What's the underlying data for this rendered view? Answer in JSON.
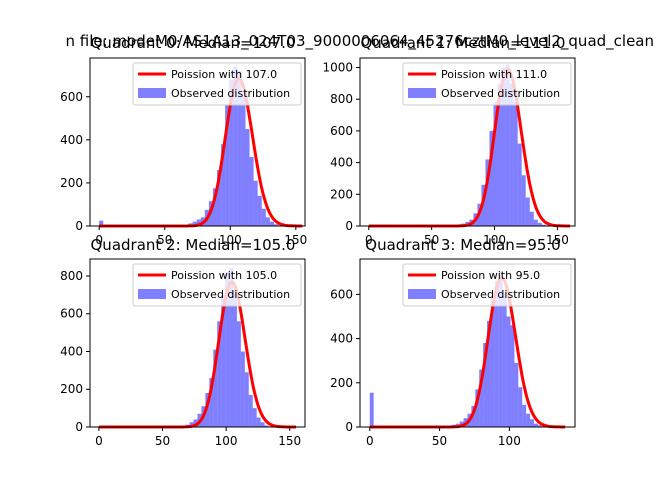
{
  "suptitle": "n file: modeM0/AS1A13_024T03_9000006064_45276cztM0_level2_quad_clean",
  "colors": {
    "poisson": "#ff0000",
    "observed": "#0000ff"
  },
  "chart_data": [
    {
      "type": "bar",
      "title": "Quadrant 0: Median=107.0",
      "xlim": [
        -7,
        157
      ],
      "ylim": [
        0,
        780
      ],
      "xticks": [
        0,
        50,
        100,
        150
      ],
      "yticks": [
        0,
        200,
        400,
        600
      ],
      "legend": {
        "placement": "top-right",
        "entries": [
          {
            "label": "Poission with 107.0",
            "kind": "line"
          },
          {
            "label": "Observed distribution",
            "kind": "patch"
          }
        ]
      },
      "bins": {
        "start": 0,
        "width": 3.1,
        "values": [
          25,
          3,
          0,
          0,
          0,
          0,
          0,
          0,
          0,
          0,
          0,
          0,
          0,
          0,
          0,
          0,
          0,
          0,
          0,
          0,
          3,
          7,
          12,
          20,
          30,
          40,
          75,
          115,
          175,
          260,
          380,
          560,
          680,
          740,
          720,
          610,
          450,
          320,
          210,
          140,
          80,
          40,
          20,
          8,
          3,
          0,
          0,
          0,
          0,
          0
        ]
      },
      "poisson_mean": 107
    },
    {
      "type": "bar",
      "title": "Quadrant 1: Median=111.0",
      "xlim": [
        -7,
        164
      ],
      "ylim": [
        0,
        1060
      ],
      "xticks": [
        0,
        50,
        100,
        150
      ],
      "yticks": [
        0,
        200,
        400,
        600,
        800,
        1000
      ],
      "legend": {
        "placement": "top-right",
        "entries": [
          {
            "label": "Poission with 111.0",
            "kind": "line"
          },
          {
            "label": "Observed distribution",
            "kind": "patch"
          }
        ]
      },
      "bins": {
        "start": 0,
        "width": 3.2,
        "values": [
          3,
          0,
          0,
          0,
          0,
          0,
          0,
          0,
          0,
          0,
          0,
          0,
          0,
          0,
          0,
          0,
          0,
          0,
          0,
          0,
          3,
          5,
          10,
          15,
          25,
          40,
          80,
          140,
          260,
          420,
          600,
          780,
          900,
          1000,
          1020,
          900,
          780,
          520,
          320,
          180,
          90,
          40,
          20,
          8,
          3,
          0,
          0,
          0,
          0,
          0
        ]
      },
      "poisson_mean": 111
    },
    {
      "type": "bar",
      "title": "Quadrant 2: Median=105.0",
      "xlim": [
        -7,
        162
      ],
      "ylim": [
        0,
        890
      ],
      "xticks": [
        0,
        50,
        100,
        150
      ],
      "yticks": [
        0,
        200,
        400,
        600,
        800
      ],
      "legend": {
        "placement": "top-right",
        "entries": [
          {
            "label": "Poission with 105.0",
            "kind": "line"
          },
          {
            "label": "Observed distribution",
            "kind": "patch"
          }
        ]
      },
      "bins": {
        "start": 0,
        "width": 3.1,
        "values": [
          3,
          0,
          0,
          0,
          0,
          0,
          0,
          0,
          0,
          0,
          0,
          0,
          0,
          0,
          0,
          0,
          0,
          0,
          0,
          0,
          3,
          7,
          12,
          25,
          40,
          70,
          110,
          180,
          260,
          410,
          560,
          700,
          820,
          840,
          720,
          560,
          400,
          290,
          170,
          100,
          50,
          25,
          8,
          3,
          0,
          0,
          0,
          0,
          0,
          0
        ]
      },
      "poisson_mean": 105
    },
    {
      "type": "bar",
      "title": "Quadrant 3: Median=95.0",
      "xlim": [
        -7,
        147
      ],
      "ylim": [
        0,
        760
      ],
      "xticks": [
        0,
        50,
        100
      ],
      "yticks": [
        0,
        200,
        400,
        600
      ],
      "legend": {
        "placement": "top-right",
        "entries": [
          {
            "label": "Poission with 95.0",
            "kind": "line"
          },
          {
            "label": "Observed distribution",
            "kind": "patch"
          }
        ]
      },
      "bins": {
        "start": 0,
        "width": 2.8,
        "values": [
          155,
          0,
          0,
          0,
          0,
          0,
          0,
          0,
          0,
          0,
          0,
          0,
          0,
          0,
          0,
          0,
          0,
          0,
          3,
          5,
          7,
          10,
          15,
          25,
          40,
          60,
          95,
          170,
          260,
          380,
          480,
          580,
          660,
          700,
          600,
          500,
          460,
          290,
          180,
          100,
          60,
          35,
          15,
          8,
          3,
          0,
          0,
          0,
          0,
          0
        ]
      },
      "poisson_mean": 95
    }
  ]
}
